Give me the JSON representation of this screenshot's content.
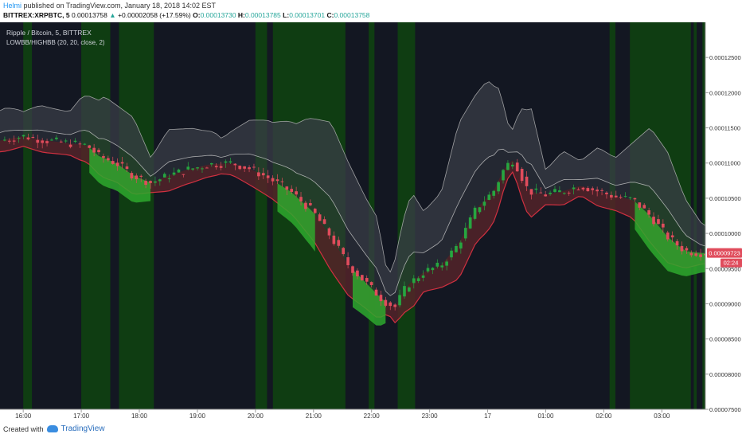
{
  "header": {
    "author": "Helmi",
    "published_text": "published on TradingView.com, January 18, 2018 14:02 EST",
    "symbol": "BITTREX:XRPBTC, 5",
    "last": "0.00013758",
    "change": "+0.00002058 (+17.59%)",
    "o_label": "O:",
    "o_value": "0.00013730",
    "h_label": "H:",
    "h_value": "0.00013785",
    "l_label": "L:",
    "l_value": "0.00013701",
    "c_label": "C:",
    "c_value": "0.00013758"
  },
  "legend": {
    "pair": "Ripple / Bitcoin, 5, BITTREX",
    "indicator": "LOWBB/HIGHBB (20, 20, close, 2)"
  },
  "footer": {
    "created_with": "Created with",
    "brand": "TradingView"
  },
  "colors": {
    "background": "#131722",
    "highlight": "#0f3d12",
    "bull": "#26a640",
    "bear": "#e04c5c",
    "upper_fill": "#3a3d47",
    "lower_fill": "#5a1e24",
    "basis": "#cccccc",
    "upper": "#bdbdbd",
    "lower": "#d03040",
    "price_badge": "#e04c5c",
    "fill_green": "#2ea82e"
  },
  "chart_data": {
    "type": "candlestick",
    "yaxis": {
      "ticks": [
        "0.00012500",
        "0.00012000",
        "0.00011500",
        "0.00011000",
        "0.00010500",
        "0.00010000",
        "0.00009500",
        "0.00009000",
        "0.00008500",
        "0.00008000",
        "0.00007500"
      ],
      "ylim": [
        7.5e-05,
        0.00013
      ]
    },
    "xaxis": {
      "ticks": [
        "16:00",
        "17:00",
        "18:00",
        "19:00",
        "20:00",
        "21:00",
        "22:00",
        "23:00",
        "17",
        "01:00",
        "02:00",
        "03:00"
      ]
    },
    "price_label": "0.00009723",
    "countdown_label": "02:24",
    "highlight_zones_hours": [
      [
        16.0,
        16.15
      ],
      [
        17.0,
        17.5
      ],
      [
        17.65,
        18.25
      ],
      [
        20.0,
        20.2
      ],
      [
        20.3,
        21.55
      ],
      [
        21.95,
        22.05
      ],
      [
        22.45,
        22.75
      ],
      [
        26.1,
        26.2
      ],
      [
        26.45,
        27.5
      ],
      [
        27.55,
        27.6
      ],
      [
        27.7,
        27.75
      ]
    ],
    "xlim_hours": [
      15.6,
      27.75
    ],
    "key_points": [
      {
        "t": 15.6,
        "price": 0.0001132
      },
      {
        "t": 15.8,
        "price": 0.0001135
      },
      {
        "t": 16.0,
        "price": 0.0001138
      },
      {
        "t": 16.4,
        "price": 0.0001132
      },
      {
        "t": 16.8,
        "price": 0.0001128
      },
      {
        "t": 17.1,
        "price": 0.0001125
      },
      {
        "t": 17.3,
        "price": 0.000111
      },
      {
        "t": 17.6,
        "price": 0.00011
      },
      {
        "t": 17.9,
        "price": 0.0001082
      },
      {
        "t": 18.2,
        "price": 0.0001072
      },
      {
        "t": 18.5,
        "price": 0.0001082
      },
      {
        "t": 18.8,
        "price": 0.000109
      },
      {
        "t": 19.2,
        "price": 0.0001098
      },
      {
        "t": 19.6,
        "price": 0.00011
      },
      {
        "t": 19.9,
        "price": 0.0001092
      },
      {
        "t": 20.2,
        "price": 0.000108
      },
      {
        "t": 20.6,
        "price": 0.000106
      },
      {
        "t": 21.0,
        "price": 0.000103
      },
      {
        "t": 21.3,
        "price": 9.95e-05
      },
      {
        "t": 21.6,
        "price": 9.55e-05
      },
      {
        "t": 21.9,
        "price": 9.3e-05
      },
      {
        "t": 22.2,
        "price": 9.05e-05
      },
      {
        "t": 22.4,
        "price": 8.95e-05
      },
      {
        "t": 22.6,
        "price": 9.25e-05
      },
      {
        "t": 22.9,
        "price": 9.45e-05
      },
      {
        "t": 23.2,
        "price": 9.55e-05
      },
      {
        "t": 23.5,
        "price": 9.85e-05
      },
      {
        "t": 23.8,
        "price": 0.0001035
      },
      {
        "t": 24.1,
        "price": 0.000106
      },
      {
        "t": 24.3,
        "price": 0.0001095
      },
      {
        "t": 24.45,
        "price": 0.0001105
      },
      {
        "t": 24.7,
        "price": 0.000106
      },
      {
        "t": 25.0,
        "price": 0.0001055
      },
      {
        "t": 25.3,
        "price": 0.000106
      },
      {
        "t": 25.6,
        "price": 0.0001068
      },
      {
        "t": 25.9,
        "price": 0.000106
      },
      {
        "t": 26.2,
        "price": 0.0001052
      },
      {
        "t": 26.5,
        "price": 0.0001048
      },
      {
        "t": 26.8,
        "price": 0.0001025
      },
      {
        "t": 27.1,
        "price": 9.95e-05
      },
      {
        "t": 27.4,
        "price": 9.75e-05
      },
      {
        "t": 27.7,
        "price": 9.72e-05
      }
    ],
    "grid": false
  }
}
